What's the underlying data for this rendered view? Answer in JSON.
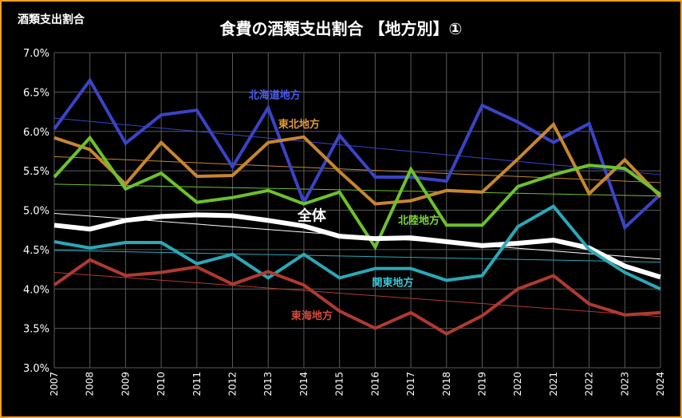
{
  "header": {
    "corner_label": "酒類支出割合",
    "title": "食費の酒類支出割合 【地方別】①"
  },
  "chart_data": {
    "type": "line",
    "title": "食費の酒類支出割合 【地方別】①",
    "xlabel": "",
    "ylabel": "酒類支出割合",
    "x": [
      "2007",
      "2008",
      "2009",
      "2010",
      "2011",
      "2012",
      "2013",
      "2014",
      "2015",
      "2016",
      "2017",
      "2018",
      "2019",
      "2020",
      "2021",
      "2022",
      "2023",
      "2024"
    ],
    "ylim": [
      3.0,
      7.0
    ],
    "yticks": [
      "3.0%",
      "3.5%",
      "4.0%",
      "4.5%",
      "5.0%",
      "5.5%",
      "6.0%",
      "6.5%",
      "7.0%"
    ],
    "grid": true,
    "legend": "inline labels",
    "trendlines": true,
    "series": [
      {
        "name": "北海道地方",
        "color": "#3a44c8",
        "label_color": "#4a5cf0",
        "values": [
          6.03,
          6.65,
          5.85,
          6.21,
          6.27,
          5.55,
          6.3,
          5.1,
          5.95,
          5.42,
          5.42,
          5.37,
          6.33,
          6.12,
          5.86,
          6.1,
          4.78,
          5.2
        ],
        "trend": [
          6.17,
          5.45
        ]
      },
      {
        "name": "東北地方",
        "color": "#c8862e",
        "label_color": "#e09a3a",
        "values": [
          5.92,
          5.77,
          5.33,
          5.86,
          5.43,
          5.44,
          5.86,
          5.93,
          5.49,
          5.08,
          5.12,
          5.25,
          5.23,
          5.65,
          6.09,
          5.21,
          5.64,
          5.17
        ],
        "trend": [
          5.68,
          5.35
        ]
      },
      {
        "name": "北陸地方",
        "color": "#6cc22c",
        "label_color": "#7ed838",
        "values": [
          5.42,
          5.92,
          5.27,
          5.47,
          5.1,
          5.16,
          5.25,
          5.08,
          5.23,
          4.53,
          5.52,
          4.81,
          4.81,
          5.3,
          5.45,
          5.57,
          5.53,
          5.2
        ],
        "trend": [
          5.33,
          5.18
        ]
      },
      {
        "name": "全体",
        "color": "#ffffff",
        "label_color": "#ffffff",
        "values": [
          4.81,
          4.76,
          4.87,
          4.92,
          4.94,
          4.93,
          4.87,
          4.8,
          4.67,
          4.64,
          4.65,
          4.6,
          4.55,
          4.58,
          4.62,
          4.52,
          4.29,
          4.15
        ],
        "trend": [
          4.96,
          4.38
        ]
      },
      {
        "name": "関東地方",
        "color": "#2aa8b8",
        "label_color": "#3ac8d8",
        "values": [
          4.6,
          4.52,
          4.59,
          4.59,
          4.32,
          4.44,
          4.14,
          4.44,
          4.14,
          4.26,
          4.26,
          4.11,
          4.17,
          4.79,
          5.05,
          4.5,
          4.21,
          4.0
        ],
        "trend": [
          4.49,
          4.34
        ]
      },
      {
        "name": "東海地方",
        "color": "#b03a30",
        "label_color": "#d84a3a",
        "values": [
          4.05,
          4.37,
          4.17,
          4.21,
          4.28,
          4.06,
          4.22,
          4.05,
          3.72,
          3.5,
          3.7,
          3.43,
          3.66,
          4.0,
          4.17,
          3.81,
          3.67,
          3.7
        ],
        "trend": [
          4.21,
          3.65
        ]
      }
    ]
  }
}
